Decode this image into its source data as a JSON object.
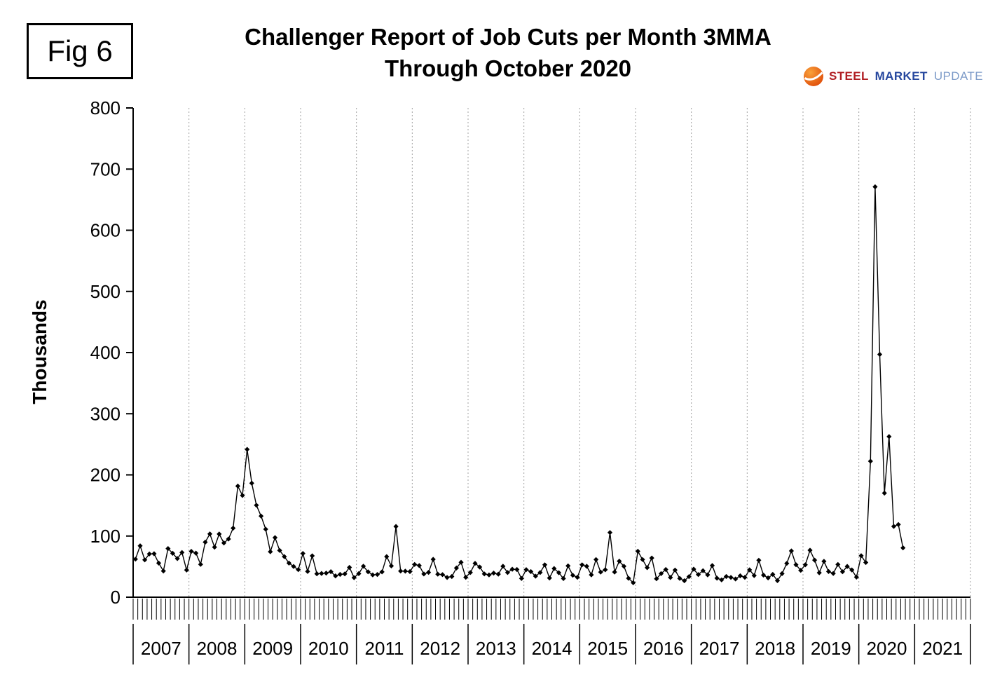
{
  "header": {
    "fig_label": "Fig 6"
  },
  "logo": {
    "mark": "orange-globe-swoosh",
    "words": [
      {
        "text": "STEEL",
        "color": "#b01e23"
      },
      {
        "text": "MARKET",
        "color": "#26479e"
      },
      {
        "text": "UPDATE",
        "color": "#7d9bc8"
      }
    ]
  },
  "chart_data": {
    "type": "line",
    "title": "Challenger Report of Job Cuts per Month 3MMA",
    "subtitle": "Through October 2020",
    "ylabel": "Thousands",
    "ylim": [
      0,
      800
    ],
    "yticks": [
      0,
      100,
      200,
      300,
      400,
      500,
      600,
      700,
      800
    ],
    "x_axis_years": [
      "2007",
      "2008",
      "2009",
      "2010",
      "2011",
      "2012",
      "2013",
      "2014",
      "2015",
      "2016",
      "2017",
      "2018",
      "2019",
      "2020",
      "2021"
    ],
    "frequency": "monthly",
    "grid": "vertical-dashed-at-year-boundaries",
    "legend": "none",
    "marker": "diamond",
    "series": [
      {
        "name": "Job cuts per month (thousands)",
        "color": "#000000",
        "start": "2007-01",
        "end": "2020-10",
        "values_by_year": {
          "2007": [
            62.2,
            84.0,
            61.0,
            70.7,
            71.1,
            55.7,
            42.9,
            79.5,
            71.7,
            63.1,
            73.1,
            44.4
          ],
          "2008": [
            75.0,
            72.1,
            53.6,
            90.0,
            103.5,
            81.8,
            103.3,
            88.7,
            95.1,
            112.9,
            181.7,
            166.3
          ],
          "2009": [
            241.7,
            186.4,
            150.4,
            132.6,
            111.2,
            74.4,
            97.4,
            76.5,
            66.4,
            55.7,
            50.3,
            45.1
          ],
          "2010": [
            71.5,
            42.1,
            67.6,
            38.3,
            38.8,
            39.4,
            41.7,
            34.8,
            37.2,
            38.0,
            48.7,
            32.0
          ],
          "2011": [
            38.5,
            50.7,
            41.5,
            36.5,
            37.1,
            41.4,
            66.4,
            51.1,
            115.7,
            42.8,
            42.5,
            41.8
          ],
          "2012": [
            53.5,
            51.7,
            37.9,
            40.6,
            61.9,
            37.6,
            36.9,
            32.2,
            33.8,
            47.7,
            57.1,
            32.6
          ],
          "2013": [
            40.4,
            55.4,
            49.3,
            38.1,
            36.4,
            39.4,
            37.7,
            50.5,
            40.3,
            45.7,
            45.3,
            30.6
          ],
          "2014": [
            45.1,
            41.8,
            34.4,
            40.3,
            53.0,
            31.4,
            46.9,
            40.0,
            30.5,
            51.2,
            35.9,
            32.6
          ],
          "2015": [
            53.0,
            50.6,
            36.6,
            61.6,
            41.0,
            44.8,
            105.7,
            41.2,
            58.9,
            50.5,
            31.0,
            23.6
          ],
          "2016": [
            75.1,
            61.6,
            48.2,
            64.1,
            30.2,
            38.5,
            45.3,
            32.2,
            44.3,
            30.7,
            26.9,
            33.6
          ],
          "2017": [
            45.9,
            37.0,
            43.3,
            36.6,
            51.7,
            31.1,
            28.3,
            33.8,
            32.3,
            29.8,
            35.0,
            32.4
          ],
          "2018": [
            44.7,
            35.4,
            60.4,
            36.1,
            31.5,
            37.2,
            27.1,
            38.5,
            55.3,
            75.6,
            53.1,
            43.9
          ],
          "2019": [
            53.0,
            76.8,
            60.6,
            40.0,
            58.6,
            42.0,
            38.8,
            53.5,
            41.6,
            50.3,
            44.6,
            32.8
          ],
          "2020": [
            67.7,
            56.7,
            222.3,
            671.1,
            397.0,
            170.2,
            262.6,
            115.8,
            118.8,
            80.7
          ]
        }
      }
    ]
  }
}
